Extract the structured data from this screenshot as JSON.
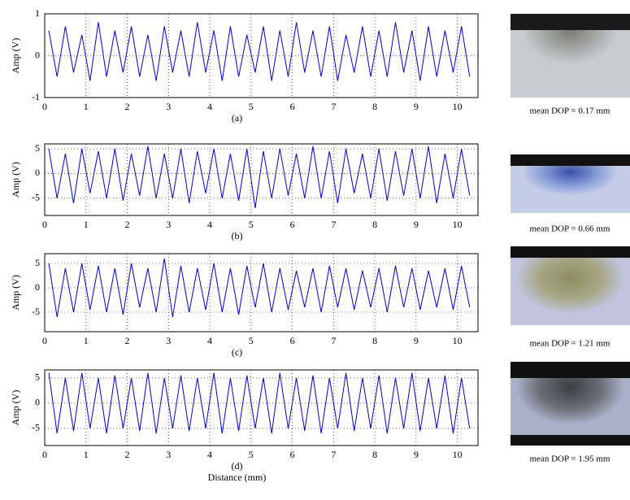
{
  "chart_data": [
    {
      "type": "line",
      "ylabel": "Amp (V)",
      "caption": "(a)",
      "color": "#0000cc",
      "xlim": [
        0,
        10.5
      ],
      "xticks": [
        0,
        1,
        2,
        3,
        4,
        5,
        6,
        7,
        8,
        9,
        10
      ],
      "ylim": [
        -1,
        1
      ],
      "yticks": [
        -1,
        0,
        1
      ],
      "grid": true,
      "x": [
        0.1,
        0.3,
        0.5,
        0.7,
        0.9,
        1.1,
        1.3,
        1.5,
        1.7,
        1.9,
        2.1,
        2.3,
        2.5,
        2.7,
        2.9,
        3.1,
        3.3,
        3.5,
        3.7,
        3.9,
        4.1,
        4.3,
        4.5,
        4.7,
        4.9,
        5.1,
        5.3,
        5.5,
        5.7,
        5.9,
        6.1,
        6.3,
        6.5,
        6.7,
        6.9,
        7.1,
        7.3,
        7.5,
        7.7,
        7.9,
        8.1,
        8.3,
        8.5,
        8.7,
        8.9,
        9.1,
        9.3,
        9.5,
        9.7,
        9.9,
        10.1,
        10.3
      ],
      "values": [
        0.6,
        -0.5,
        0.7,
        -0.4,
        0.5,
        -0.6,
        0.8,
        -0.5,
        0.6,
        -0.4,
        0.7,
        -0.5,
        0.5,
        -0.6,
        0.7,
        -0.4,
        0.6,
        -0.5,
        0.8,
        -0.4,
        0.6,
        -0.6,
        0.7,
        -0.5,
        0.5,
        -0.4,
        0.7,
        -0.6,
        0.6,
        -0.5,
        0.8,
        -0.4,
        0.6,
        -0.5,
        0.7,
        -0.6,
        0.5,
        -0.4,
        0.7,
        -0.5,
        0.6,
        -0.5,
        0.8,
        -0.4,
        0.6,
        -0.6,
        0.7,
        -0.5,
        0.6,
        -0.4,
        0.7,
        -0.5
      ]
    },
    {
      "type": "line",
      "ylabel": "Amp (V)",
      "caption": "(b)",
      "color": "#0000cc",
      "xlim": [
        0,
        10.5
      ],
      "xticks": [
        0,
        1,
        2,
        3,
        4,
        5,
        6,
        7,
        8,
        9,
        10
      ],
      "ylim": [
        -8.5,
        6
      ],
      "yticks": [
        -5,
        0,
        5
      ],
      "grid": true,
      "x": [
        0.1,
        0.3,
        0.5,
        0.7,
        0.9,
        1.1,
        1.3,
        1.5,
        1.7,
        1.9,
        2.1,
        2.3,
        2.5,
        2.7,
        2.9,
        3.1,
        3.3,
        3.5,
        3.7,
        3.9,
        4.1,
        4.3,
        4.5,
        4.7,
        4.9,
        5.1,
        5.3,
        5.5,
        5.7,
        5.9,
        6.1,
        6.3,
        6.5,
        6.7,
        6.9,
        7.1,
        7.3,
        7.5,
        7.7,
        7.9,
        8.1,
        8.3,
        8.5,
        8.7,
        8.9,
        9.1,
        9.3,
        9.5,
        9.7,
        9.9,
        10.1,
        10.3
      ],
      "values": [
        5,
        -5,
        4,
        -6,
        5,
        -4,
        4.5,
        -5,
        5,
        -5.5,
        4,
        -4.5,
        5.5,
        -5,
        4,
        -5,
        5,
        -6,
        4.5,
        -4,
        5,
        -5,
        4,
        -5.5,
        5,
        -7,
        4.5,
        -5,
        5,
        -4.5,
        4,
        -5,
        5.5,
        -5,
        4.5,
        -6,
        5,
        -4,
        4,
        -5,
        5,
        -5.5,
        4.5,
        -4.5,
        5,
        -5,
        5.5,
        -6,
        4,
        -5,
        5,
        -4.5
      ]
    },
    {
      "type": "line",
      "ylabel": "Amp (V)",
      "caption": "(c)",
      "color": "#0000cc",
      "xlim": [
        0,
        10.5
      ],
      "xticks": [
        0,
        1,
        2,
        3,
        4,
        5,
        6,
        7,
        8,
        9,
        10
      ],
      "ylim": [
        -9,
        7
      ],
      "yticks": [
        -5,
        0,
        5
      ],
      "grid": true,
      "x": [
        0.1,
        0.3,
        0.5,
        0.7,
        0.9,
        1.1,
        1.3,
        1.5,
        1.7,
        1.9,
        2.1,
        2.3,
        2.5,
        2.7,
        2.9,
        3.1,
        3.3,
        3.5,
        3.7,
        3.9,
        4.1,
        4.3,
        4.5,
        4.7,
        4.9,
        5.1,
        5.3,
        5.5,
        5.7,
        5.9,
        6.1,
        6.3,
        6.5,
        6.7,
        6.9,
        7.1,
        7.3,
        7.5,
        7.7,
        7.9,
        8.1,
        8.3,
        8.5,
        8.7,
        8.9,
        9.1,
        9.3,
        9.5,
        9.7,
        9.9,
        10.1,
        10.3
      ],
      "values": [
        5,
        -6,
        4,
        -5,
        5,
        -4.5,
        4.5,
        -5,
        4,
        -5.5,
        5,
        -4,
        4,
        -5,
        6,
        -6,
        4.5,
        -5,
        4,
        -4.5,
        5,
        -5,
        4,
        -5.5,
        4.5,
        -4,
        5,
        -5,
        4,
        -4.5,
        3.5,
        -4,
        4,
        -5,
        4.5,
        -4,
        4,
        -4.5,
        3.5,
        -4,
        4,
        -5,
        4.5,
        -4,
        4,
        -4.5,
        3.5,
        -4,
        4,
        -4.5,
        4.5,
        -4
      ]
    },
    {
      "type": "line",
      "ylabel": "Amp (V)",
      "caption": "(d)",
      "xlabel": "Distance (mm)",
      "color": "#0000cc",
      "xlim": [
        0,
        10.5
      ],
      "xticks": [
        0,
        1,
        2,
        3,
        4,
        5,
        6,
        7,
        8,
        9,
        10
      ],
      "ylim": [
        -8.4,
        6.6
      ],
      "yticks": [
        -5,
        0,
        5
      ],
      "grid": true,
      "x": [
        0.1,
        0.3,
        0.5,
        0.7,
        0.9,
        1.1,
        1.3,
        1.5,
        1.7,
        1.9,
        2.1,
        2.3,
        2.5,
        2.7,
        2.9,
        3.1,
        3.3,
        3.5,
        3.7,
        3.9,
        4.1,
        4.3,
        4.5,
        4.7,
        4.9,
        5.1,
        5.3,
        5.5,
        5.7,
        5.9,
        6.1,
        6.3,
        6.5,
        6.7,
        6.9,
        7.1,
        7.3,
        7.5,
        7.7,
        7.9,
        8.1,
        8.3,
        8.5,
        8.7,
        8.9,
        9.1,
        9.3,
        9.5,
        9.7,
        9.9,
        10.1,
        10.3
      ],
      "values": [
        6,
        -6,
        5,
        -5.5,
        6,
        -5,
        5,
        -6,
        5.5,
        -5,
        5,
        -5.5,
        6,
        -6,
        5,
        -5,
        5.5,
        -5.5,
        5,
        -5,
        6,
        -6,
        5,
        -5.5,
        5.5,
        -5,
        5,
        -6,
        6,
        -5,
        5,
        -5.5,
        5.5,
        -6,
        5,
        -5,
        6,
        -5.5,
        5,
        -5,
        5.5,
        -6,
        5,
        -5,
        6,
        -5.5,
        5,
        -5,
        5.5,
        -6,
        5,
        -5
      ]
    }
  ],
  "micrographs": [
    {
      "caption": "mean DOP = 0.17 mm"
    },
    {
      "caption": "mean DOP = 0.66 mm"
    },
    {
      "caption": "mean DOP = 1.21 mm"
    },
    {
      "caption": "mean DOP = 1.95 mm"
    }
  ]
}
